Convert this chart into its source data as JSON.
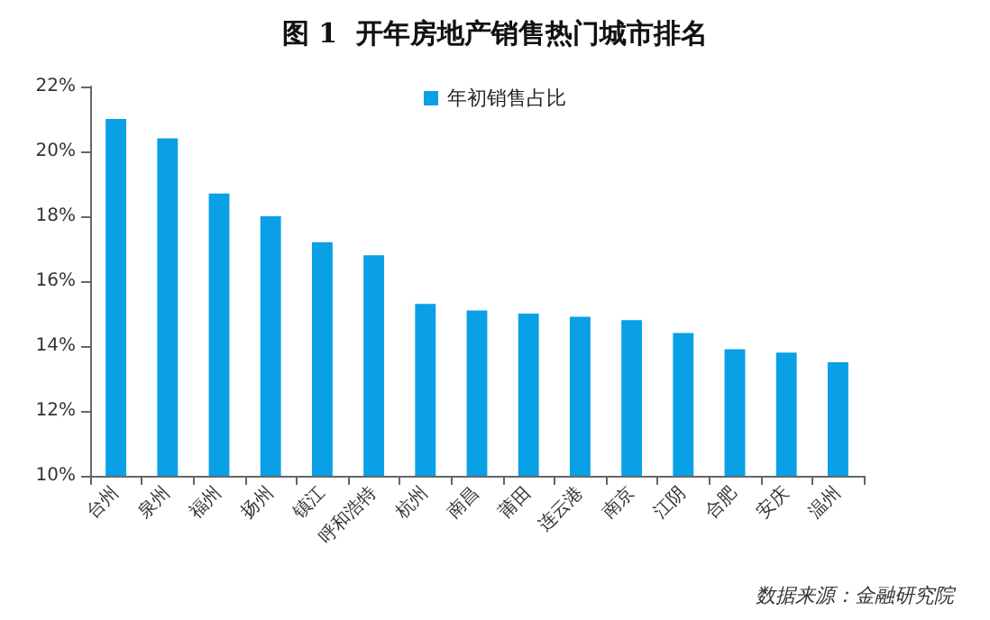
{
  "chart_data": {
    "type": "bar",
    "title": "图 1  开年房地产销售热门城市排名",
    "categories": [
      "台州",
      "泉州",
      "福州",
      "扬州",
      "镇江",
      "呼和浩特",
      "杭州",
      "南昌",
      "莆田",
      "连云港",
      "南京",
      "江阴",
      "合肥",
      "安庆",
      "温州"
    ],
    "series": [
      {
        "name": "年初销售占比",
        "color": "#0aa0e6",
        "values": [
          21.0,
          20.4,
          18.7,
          18.0,
          17.2,
          16.8,
          15.3,
          15.1,
          15.0,
          14.9,
          14.8,
          14.4,
          13.9,
          13.8,
          13.5
        ]
      }
    ],
    "ylim": [
      10,
      22
    ],
    "yticks": [
      {
        "value": 10,
        "label": "10%"
      },
      {
        "value": 12,
        "label": "12%"
      },
      {
        "value": 14,
        "label": "14%"
      },
      {
        "value": 16,
        "label": "16%"
      },
      {
        "value": 18,
        "label": "18%"
      },
      {
        "value": 20,
        "label": "20%"
      },
      {
        "value": 22,
        "label": "22%"
      }
    ],
    "legend": "top",
    "grid": false,
    "annotations": [
      "数据来源：金融研究院"
    ]
  }
}
